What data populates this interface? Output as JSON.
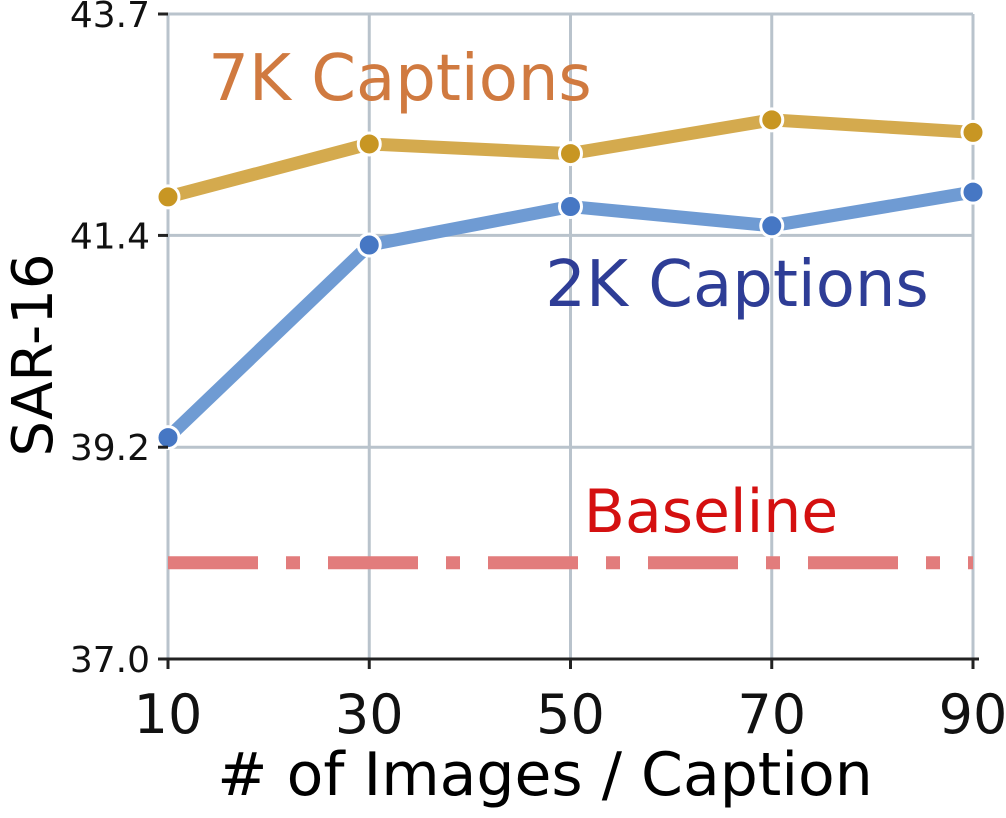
{
  "chart_data": {
    "type": "line",
    "xlabel": "# of Images / Caption",
    "ylabel": "SAR-16",
    "x": [
      10,
      30,
      50,
      70,
      90
    ],
    "xlim": [
      10,
      90
    ],
    "ylim": [
      37.0,
      43.7
    ],
    "yticks": [
      37.0,
      39.2,
      41.4,
      43.7
    ],
    "yticks_labels": [
      "37.0",
      "39.2",
      "41.4",
      "43.7"
    ],
    "xticks_labels": [
      "10",
      "30",
      "50",
      "70",
      "90"
    ],
    "grid": true,
    "series": [
      {
        "name": "7K Captions",
        "values": [
          41.8,
          42.35,
          42.25,
          42.6,
          42.47
        ],
        "line_color": "#d4aa4e",
        "marker_color": "#c89623",
        "label_color": "#d07a40"
      },
      {
        "name": "2K Captions",
        "values": [
          39.3,
          41.3,
          41.7,
          41.5,
          41.85
        ],
        "line_color": "#6f9bd3",
        "marker_color": "#4677c4",
        "label_color": "#2e3d96"
      }
    ],
    "reference_lines": [
      {
        "name": "Baseline",
        "y": 38.0,
        "style": "dash-dot",
        "color": "#e27c7c",
        "label_color": "#d41010"
      }
    ]
  }
}
